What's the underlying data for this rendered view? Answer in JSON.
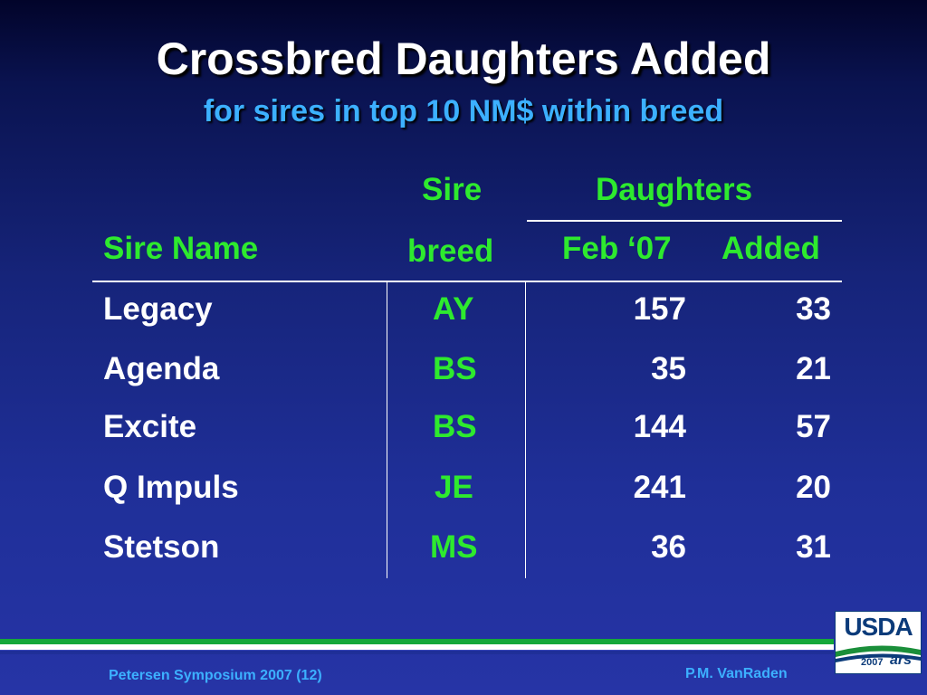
{
  "slide": {
    "title": "Crossbred Daughters Added",
    "subtitle": "for sires in top 10 NM$ within breed"
  },
  "table": {
    "headers": {
      "sire_breed_line1": "Sire",
      "sire_breed_line2": "breed",
      "daughters": "Daughters",
      "sire_name": "Sire Name",
      "feb07": "Feb ‘07",
      "added": "Added"
    },
    "rows": [
      {
        "name": "Legacy",
        "breed": "AY",
        "feb07": "157",
        "added": "33"
      },
      {
        "name": "Agenda",
        "breed": "BS",
        "feb07": "35",
        "added": "21"
      },
      {
        "name": "Excite",
        "breed": "BS",
        "feb07": "144",
        "added": "57"
      },
      {
        "name": "Q Impuls",
        "breed": "JE",
        "feb07": "241",
        "added": "20"
      },
      {
        "name": "Stetson",
        "breed": "MS",
        "feb07": "36",
        "added": "31"
      }
    ]
  },
  "footer": {
    "left": "Petersen Symposium 2007 (12)",
    "right": "P.M. VanRaden"
  },
  "logo": {
    "word": "USDA",
    "year": "2007",
    "ars": "ars"
  },
  "colors": {
    "header_text": "#2eea2e",
    "body_text": "#ffffff",
    "subtitle": "#3cb0ff",
    "footer_text": "#3cb0ff",
    "background_top": "#02042a",
    "background_bottom": "#2634a6"
  }
}
